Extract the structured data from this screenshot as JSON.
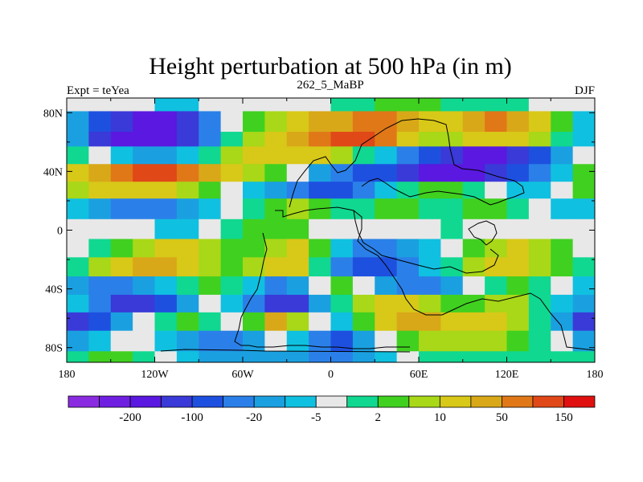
{
  "chart_data": {
    "type": "heatmap",
    "title": "Height perturbation at 500 hPa (in m)",
    "left_label": "Expt = teYea",
    "center_label": "262_5_MaBP",
    "right_label": "DJF",
    "x_ticks": [
      "180",
      "120W",
      "60W",
      "0",
      "60E",
      "120E",
      "180"
    ],
    "y_ticks": [
      "80N",
      "40N",
      "0",
      "40S",
      "80S"
    ],
    "xlim": [
      -180,
      180
    ],
    "ylim": [
      -90,
      90
    ],
    "colorbar": {
      "colors": [
        "#8a2be2",
        "#6f1fe0",
        "#5a18e0",
        "#3a3ad8",
        "#1e50e0",
        "#2a80e8",
        "#1aa0e0",
        "#10c0e0",
        "#e8e8e8",
        "#10d890",
        "#40d020",
        "#a8d818",
        "#d8c818",
        "#d8a818",
        "#e07818",
        "#e04818",
        "#e01010"
      ],
      "labels": [
        {
          "text": "-200",
          "after_index": 1
        },
        {
          "text": "-100",
          "after_index": 3
        },
        {
          "text": "-20",
          "after_index": 5
        },
        {
          "text": "-5",
          "after_index": 7
        },
        {
          "text": "2",
          "after_index": 9
        },
        {
          "text": "10",
          "after_index": 11
        },
        {
          "text": "50",
          "after_index": 13
        },
        {
          "text": "150",
          "after_index": 15
        }
      ]
    },
    "bands": [
      {
        "lat": 90,
        "row": [
          8,
          8,
          8,
          8,
          7,
          7,
          8,
          8,
          8,
          8,
          8,
          8,
          9,
          9,
          10,
          10,
          10,
          9,
          9,
          9,
          9,
          8,
          8,
          8
        ]
      },
      {
        "lat": 72,
        "row": [
          6,
          4,
          3,
          2,
          2,
          3,
          5,
          8,
          10,
          11,
          12,
          13,
          13,
          14,
          14,
          13,
          12,
          12,
          13,
          14,
          13,
          12,
          10,
          7
        ]
      },
      {
        "lat": 62,
        "row": [
          6,
          3,
          2,
          2,
          2,
          3,
          5,
          9,
          11,
          12,
          13,
          14,
          15,
          15,
          14,
          12,
          11,
          11,
          12,
          12,
          12,
          11,
          9,
          7
        ]
      },
      {
        "lat": 52,
        "row": [
          9,
          8,
          7,
          6,
          6,
          7,
          9,
          11,
          12,
          12,
          12,
          12,
          11,
          9,
          7,
          5,
          4,
          3,
          2,
          2,
          3,
          4,
          6,
          8
        ]
      },
      {
        "lat": 38,
        "row": [
          12,
          13,
          14,
          15,
          15,
          14,
          13,
          12,
          11,
          10,
          8,
          6,
          5,
          4,
          4,
          3,
          2,
          2,
          2,
          3,
          4,
          5,
          7,
          10
        ]
      },
      {
        "lat": 28,
        "row": [
          11,
          12,
          12,
          12,
          12,
          11,
          10,
          8,
          7,
          6,
          5,
          4,
          4,
          5,
          7,
          9,
          10,
          10,
          9,
          8,
          7,
          7,
          8,
          10
        ]
      },
      {
        "lat": 15,
        "row": [
          7,
          6,
          5,
          5,
          5,
          6,
          7,
          8,
          9,
          10,
          11,
          10,
          9,
          9,
          10,
          10,
          9,
          9,
          10,
          10,
          9,
          8,
          7,
          7
        ]
      },
      {
        "lat": 0,
        "row": [
          8,
          8,
          8,
          8,
          7,
          7,
          8,
          9,
          10,
          10,
          10,
          8,
          8,
          8,
          8,
          8,
          8,
          9,
          8,
          8,
          8,
          8,
          8,
          8
        ]
      },
      {
        "lat": -12,
        "row": [
          8,
          9,
          10,
          11,
          12,
          12,
          11,
          10,
          10,
          11,
          12,
          10,
          7,
          5,
          5,
          6,
          7,
          8,
          10,
          11,
          12,
          11,
          10,
          8
        ]
      },
      {
        "lat": -25,
        "row": [
          9,
          11,
          12,
          13,
          13,
          12,
          11,
          10,
          11,
          12,
          12,
          9,
          5,
          4,
          4,
          5,
          7,
          9,
          11,
          12,
          12,
          11,
          10,
          9
        ]
      },
      {
        "lat": -38,
        "row": [
          6,
          5,
          5,
          6,
          7,
          9,
          10,
          9,
          7,
          5,
          6,
          8,
          10,
          8,
          6,
          5,
          5,
          6,
          8,
          9,
          10,
          9,
          8,
          7
        ]
      },
      {
        "lat": -50,
        "row": [
          7,
          5,
          3,
          3,
          4,
          6,
          8,
          7,
          5,
          3,
          3,
          6,
          9,
          11,
          12,
          12,
          11,
          10,
          10,
          11,
          11,
          9,
          7,
          6
        ]
      },
      {
        "lat": -62,
        "row": [
          3,
          4,
          6,
          8,
          9,
          10,
          9,
          8,
          10,
          13,
          11,
          8,
          7,
          10,
          12,
          13,
          13,
          12,
          12,
          12,
          11,
          9,
          6,
          3
        ]
      },
      {
        "lat": -75,
        "row": [
          6,
          7,
          8,
          8,
          7,
          6,
          5,
          5,
          6,
          8,
          7,
          5,
          4,
          6,
          8,
          10,
          11,
          11,
          11,
          11,
          10,
          9,
          8,
          6
        ]
      },
      {
        "lat": -90,
        "row": [
          9,
          10,
          10,
          9,
          8,
          7,
          6,
          6,
          6,
          6,
          6,
          5,
          5,
          6,
          7,
          8,
          9,
          9,
          9,
          9,
          9,
          9,
          9,
          9
        ]
      }
    ]
  }
}
